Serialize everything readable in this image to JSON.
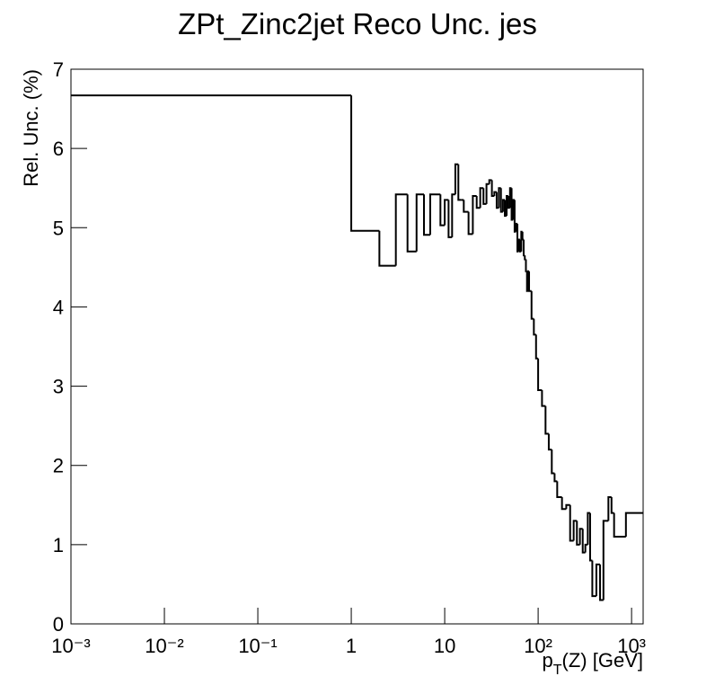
{
  "chart_data": {
    "type": "histogram",
    "title": "ZPt_Zinc2jet Reco Unc. jes",
    "ylabel": "Rel. Unc. (%)",
    "xlabel": {
      "main": "p",
      "sub": "T",
      "rest": "(Z) [GeV]"
    },
    "xscale": "log",
    "color": "#000000",
    "xlim": [
      0.001,
      1330
    ],
    "ylim": [
      0,
      7
    ],
    "xticks": [
      {
        "value": 0.001,
        "label": "10⁻³"
      },
      {
        "value": 0.01,
        "label": "10⁻²"
      },
      {
        "value": 0.1,
        "label": "10⁻¹"
      },
      1,
      10,
      {
        "value": 100,
        "label": "10²"
      },
      {
        "value": 1000,
        "label": "10³"
      }
    ],
    "yticks": [
      0,
      1,
      2,
      3,
      4,
      5,
      6,
      7
    ],
    "bins": [
      0.001,
      1,
      2,
      3,
      4,
      5,
      6,
      7,
      8,
      9,
      10,
      11,
      12,
      13,
      14,
      15,
      16,
      18,
      20,
      22,
      24,
      26,
      28,
      30,
      32,
      34,
      36,
      38,
      40,
      42,
      44,
      46,
      48,
      50,
      52,
      54,
      56,
      58,
      60,
      62,
      64,
      66,
      68,
      70,
      72,
      74,
      76,
      78,
      80,
      85,
      90,
      95,
      100,
      110,
      120,
      130,
      140,
      150,
      160,
      180,
      200,
      220,
      240,
      260,
      280,
      300,
      320,
      340,
      360,
      380,
      420,
      460,
      500,
      565,
      610,
      650,
      870,
      1330
    ],
    "values": [
      6.67,
      4.96,
      4.52,
      5.42,
      4.7,
      5.42,
      4.91,
      5.42,
      5.42,
      5.03,
      5.35,
      4.88,
      5.42,
      5.8,
      5.35,
      5.35,
      5.2,
      4.92,
      5.4,
      5.25,
      5.5,
      5.3,
      5.55,
      5.6,
      5.4,
      5.45,
      5.25,
      5.5,
      5.2,
      5.35,
      5.15,
      5.4,
      5.25,
      5.5,
      5.1,
      5.35,
      4.95,
      5.05,
      4.7,
      4.85,
      4.7,
      4.95,
      4.85,
      4.65,
      4.6,
      4.45,
      4.2,
      4.45,
      4.2,
      3.85,
      3.65,
      3.35,
      2.95,
      2.75,
      2.4,
      2.2,
      1.9,
      1.8,
      1.6,
      1.45,
      1.5,
      1.05,
      1.3,
      1.0,
      1.2,
      0.9,
      1.0,
      1.4,
      0.8,
      0.35,
      0.75,
      0.3,
      1.3,
      1.6,
      1.4,
      1.1,
      1.4
    ]
  }
}
